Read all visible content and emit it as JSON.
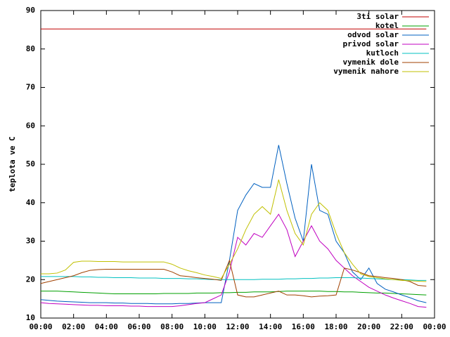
{
  "chart_data": {
    "type": "line",
    "ylabel": "teplota ve C",
    "x": [
      0,
      0.5,
      1,
      1.5,
      2,
      2.5,
      3,
      3.5,
      4,
      4.5,
      5,
      5.5,
      6,
      6.5,
      7,
      7.5,
      8,
      8.5,
      9,
      9.5,
      10,
      10.5,
      11,
      11.5,
      12,
      12.5,
      13,
      13.5,
      14,
      14.5,
      15,
      15.5,
      16,
      16.5,
      17,
      17.5,
      18,
      18.5,
      19,
      19.5,
      20,
      20.5,
      21,
      21.5,
      22,
      22.5,
      23,
      23.5
    ],
    "xlim": [
      0,
      24
    ],
    "xticks": [
      {
        "value": 0,
        "label": "00:00"
      },
      {
        "value": 2,
        "label": "02:00"
      },
      {
        "value": 4,
        "label": "04:00"
      },
      {
        "value": 6,
        "label": "06:00"
      },
      {
        "value": 8,
        "label": "08:00"
      },
      {
        "value": 10,
        "label": "10:00"
      },
      {
        "value": 12,
        "label": "12:00"
      },
      {
        "value": 14,
        "label": "14:00"
      },
      {
        "value": 16,
        "label": "16:00"
      },
      {
        "value": 18,
        "label": "18:00"
      },
      {
        "value": 20,
        "label": "20:00"
      },
      {
        "value": 22,
        "label": "22:00"
      },
      {
        "value": 24,
        "label": "00:00"
      }
    ],
    "ylim": [
      10,
      90
    ],
    "yticks": [
      10,
      20,
      30,
      40,
      50,
      60,
      70,
      80,
      90
    ],
    "grid": false,
    "legend": "top-right",
    "series": [
      {
        "name": "3ti solar",
        "color": "#c00000",
        "values": [
          85.2,
          85.2,
          85.2,
          85.2,
          85.2,
          85.2,
          85.2,
          85.2,
          85.2,
          85.2,
          85.2,
          85.2,
          85.2,
          85.2,
          85.2,
          85.2,
          85.2,
          85.2,
          85.2,
          85.2,
          85.2,
          85.2,
          85.2,
          85.2,
          85.2,
          85.2,
          85.2,
          85.2,
          85.2,
          85.2,
          85.2,
          85.2,
          85.2,
          85.2,
          85.2,
          85.2,
          85.2,
          85.2,
          85.2,
          85.2,
          85.2,
          85.2,
          85.2,
          85.2,
          85.2,
          85.2,
          85.2,
          85.2
        ]
      },
      {
        "name": "kotel",
        "color": "#00a000",
        "values": [
          17,
          17,
          17,
          16.9,
          16.8,
          16.7,
          16.6,
          16.5,
          16.4,
          16.3,
          16.3,
          16.3,
          16.3,
          16.3,
          16.3,
          16.4,
          16.4,
          16.4,
          16.4,
          16.5,
          16.5,
          16.5,
          16.6,
          16.6,
          16.7,
          16.7,
          16.8,
          16.8,
          16.8,
          16.9,
          17,
          17,
          17,
          17,
          17,
          16.9,
          16.9,
          16.8,
          16.8,
          16.7,
          16.6,
          16.5,
          16.5,
          16.4,
          16.3,
          16.2,
          16.1,
          16
        ]
      },
      {
        "name": "odvod solar",
        "color": "#0060c0",
        "values": [
          14.8,
          14.6,
          14.4,
          14.3,
          14.2,
          14.1,
          14,
          14,
          14,
          13.9,
          13.9,
          13.8,
          13.8,
          13.8,
          13.7,
          13.7,
          13.7,
          13.8,
          13.8,
          13.9,
          14,
          14,
          14,
          25,
          38,
          42,
          45,
          44,
          44,
          55,
          45,
          36,
          30,
          50,
          38,
          37,
          30,
          27,
          22,
          20,
          23,
          19,
          17.5,
          16.8,
          16,
          15.3,
          14.5,
          14
        ]
      },
      {
        "name": "privod solar",
        "color": "#c000c0",
        "values": [
          14,
          13.8,
          13.7,
          13.6,
          13.5,
          13.4,
          13.3,
          13.3,
          13.2,
          13.2,
          13.2,
          13.1,
          13.1,
          13,
          13,
          13,
          13,
          13.2,
          13.5,
          13.8,
          14,
          15,
          16,
          22,
          31,
          29,
          32,
          31,
          34,
          37,
          33,
          26,
          30,
          34,
          30,
          28,
          25,
          23,
          21,
          19.5,
          18,
          17,
          16,
          15.2,
          14.5,
          13.8,
          13,
          12.8
        ]
      },
      {
        "name": "kutloch",
        "color": "#00c0c0",
        "values": [
          20.8,
          20.8,
          20.8,
          20.8,
          20.8,
          20.7,
          20.7,
          20.6,
          20.6,
          20.5,
          20.5,
          20.5,
          20.4,
          20.4,
          20.4,
          20.3,
          20.3,
          20.3,
          20.2,
          20.2,
          20.1,
          20,
          20,
          20,
          20,
          20,
          20,
          20.1,
          20.1,
          20.1,
          20.2,
          20.2,
          20.3,
          20.3,
          20.4,
          20.4,
          20.5,
          20.5,
          20.5,
          20.4,
          20.3,
          20.2,
          20.1,
          20,
          20,
          19.9,
          19.8,
          19.8
        ]
      },
      {
        "name": "vymenik dole",
        "color": "#a04000",
        "values": [
          19,
          19.5,
          20,
          20.5,
          21,
          21.8,
          22.4,
          22.6,
          22.7,
          22.7,
          22.7,
          22.7,
          22.7,
          22.7,
          22.7,
          22.7,
          22,
          21,
          20.8,
          20.5,
          20.3,
          20.1,
          19.8,
          25,
          16,
          15.5,
          15.5,
          16,
          16.5,
          17,
          16,
          16,
          15.8,
          15.5,
          15.7,
          15.8,
          16,
          23,
          22.5,
          21.8,
          21,
          20.8,
          20.5,
          20.3,
          20,
          19.5,
          18.5,
          18.3
        ]
      },
      {
        "name": "vymenik nahore",
        "color": "#c0c000",
        "values": [
          21.5,
          21.5,
          21.7,
          22.5,
          24.5,
          24.8,
          24.8,
          24.7,
          24.7,
          24.7,
          24.6,
          24.6,
          24.6,
          24.6,
          24.6,
          24.6,
          24,
          23,
          22.3,
          21.8,
          21.2,
          20.8,
          20.3,
          24,
          28,
          33,
          37,
          39,
          37,
          46,
          38,
          32,
          29,
          37,
          40,
          38,
          32,
          27,
          24,
          21.5,
          20.8,
          20.5,
          20.2,
          20,
          19.8,
          19.7,
          19.6,
          19.5
        ]
      }
    ]
  }
}
